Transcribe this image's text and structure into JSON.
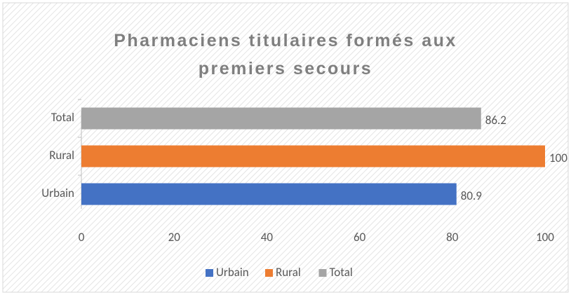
{
  "chart_data": {
    "type": "bar",
    "orientation": "horizontal",
    "title": "Pharmaciens titulaires formés aux premiers secours",
    "categories": [
      "Urbain",
      "Rural",
      "Total"
    ],
    "values": [
      80.9,
      100,
      86.2
    ],
    "colors": [
      "#4472c4",
      "#ed7d31",
      "#a5a5a5"
    ],
    "xlim": [
      0,
      100
    ],
    "xticks": [
      0,
      20,
      40,
      60,
      80,
      100
    ],
    "grid": false,
    "legend": "bottom"
  }
}
